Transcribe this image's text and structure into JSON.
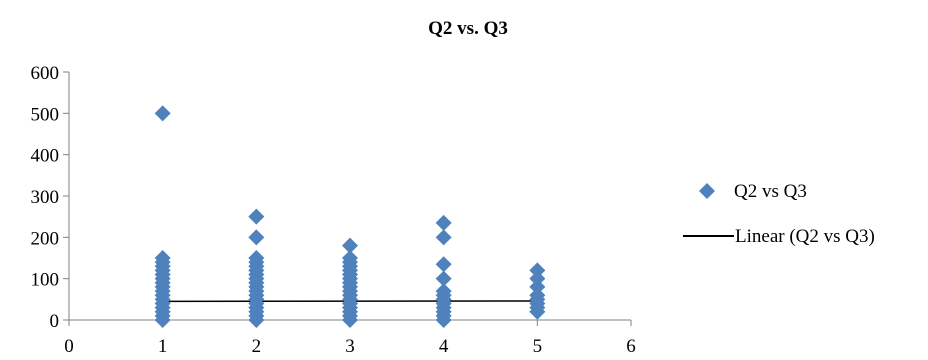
{
  "chart_data": {
    "type": "scatter",
    "title": "Q2 vs. Q3",
    "xlabel": "",
    "ylabel": "",
    "xlim": [
      0,
      6
    ],
    "ylim": [
      0,
      600
    ],
    "xticks": [
      0,
      1,
      2,
      3,
      4,
      5,
      6
    ],
    "yticks": [
      0,
      100,
      200,
      300,
      400,
      500,
      600
    ],
    "grid": false,
    "legend_position": "right",
    "series": [
      {
        "name": "Q2 vs Q3",
        "color": "#4F81BD",
        "marker": "diamond",
        "points": [
          [
            1,
            500
          ],
          [
            1,
            150
          ],
          [
            1,
            140
          ],
          [
            1,
            130
          ],
          [
            1,
            120
          ],
          [
            1,
            110
          ],
          [
            1,
            100
          ],
          [
            1,
            90
          ],
          [
            1,
            80
          ],
          [
            1,
            70
          ],
          [
            1,
            60
          ],
          [
            1,
            50
          ],
          [
            1,
            40
          ],
          [
            1,
            30
          ],
          [
            1,
            20
          ],
          [
            1,
            10
          ],
          [
            1,
            0
          ],
          [
            2,
            250
          ],
          [
            2,
            200
          ],
          [
            2,
            150
          ],
          [
            2,
            140
          ],
          [
            2,
            130
          ],
          [
            2,
            120
          ],
          [
            2,
            110
          ],
          [
            2,
            100
          ],
          [
            2,
            90
          ],
          [
            2,
            80
          ],
          [
            2,
            70
          ],
          [
            2,
            60
          ],
          [
            2,
            50
          ],
          [
            2,
            40
          ],
          [
            2,
            30
          ],
          [
            2,
            20
          ],
          [
            2,
            10
          ],
          [
            2,
            0
          ],
          [
            3,
            180
          ],
          [
            3,
            150
          ],
          [
            3,
            140
          ],
          [
            3,
            130
          ],
          [
            3,
            120
          ],
          [
            3,
            110
          ],
          [
            3,
            100
          ],
          [
            3,
            90
          ],
          [
            3,
            80
          ],
          [
            3,
            70
          ],
          [
            3,
            60
          ],
          [
            3,
            50
          ],
          [
            3,
            40
          ],
          [
            3,
            30
          ],
          [
            3,
            20
          ],
          [
            3,
            10
          ],
          [
            3,
            0
          ],
          [
            4,
            235
          ],
          [
            4,
            200
          ],
          [
            4,
            135
          ],
          [
            4,
            100
          ],
          [
            4,
            70
          ],
          [
            4,
            60
          ],
          [
            4,
            50
          ],
          [
            4,
            40
          ],
          [
            4,
            30
          ],
          [
            4,
            20
          ],
          [
            4,
            10
          ],
          [
            4,
            0
          ],
          [
            5,
            120
          ],
          [
            5,
            100
          ],
          [
            5,
            80
          ],
          [
            5,
            60
          ],
          [
            5,
            50
          ],
          [
            5,
            40
          ],
          [
            5,
            30
          ],
          [
            5,
            20
          ]
        ]
      }
    ],
    "trendline": {
      "name": "Linear (Q2 vs Q3)",
      "color": "#000000",
      "x": [
        1,
        5
      ],
      "y": [
        45,
        46
      ]
    }
  }
}
